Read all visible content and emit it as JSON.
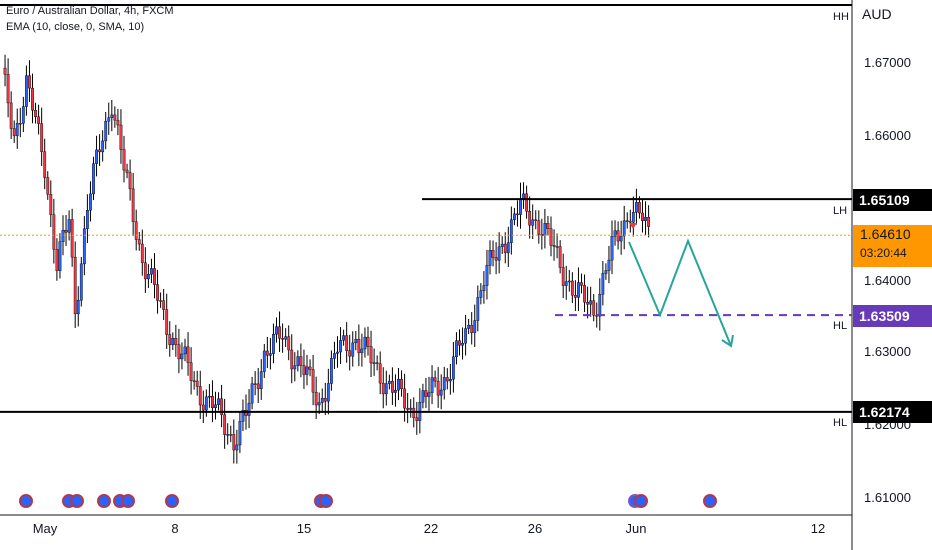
{
  "header": {
    "title": "Euro / Australian Dollar, 4h, FXCM",
    "indicator": "EMA (10, close, 0, SMA, 10)"
  },
  "axis": {
    "currency": "AUD",
    "y_ticks": [
      "1.67000",
      "1.66000",
      "1.64000",
      "1.63000",
      "1.62000",
      "1.61000"
    ],
    "x_ticks": [
      "May",
      "8",
      "15",
      "22",
      "26",
      "Jun",
      "12"
    ]
  },
  "levels": {
    "hh": "HH",
    "lh": "LH",
    "hl1": "HL",
    "hl2": "HL"
  },
  "price_tags": {
    "resistance": "1.65109",
    "current": "1.64610",
    "countdown": "03:20:44",
    "mid_support": "1.63509",
    "support": "1.62174"
  },
  "colors": {
    "up_candle": "#2962ff",
    "down_candle": "#f23645",
    "level_line": "#000000",
    "dashed_support": "#673ab7",
    "projection": "#26a69a",
    "current_price": "#ff9800",
    "mid_support_tag": "#673ab7"
  },
  "chart_data": {
    "type": "candlestick",
    "symbol": "EURAUD",
    "timeframe": "4h",
    "ylim": [
      1.605,
      1.677
    ],
    "levels": [
      1.65109,
      1.63509,
      1.62174
    ],
    "current_price": 1.6461,
    "close_path": [
      [
        0,
        1.668
      ],
      [
        4,
        1.66
      ],
      [
        8,
        1.667
      ],
      [
        14,
        1.656
      ],
      [
        18,
        1.642
      ],
      [
        22,
        1.648
      ],
      [
        24,
        1.636
      ],
      [
        28,
        1.65
      ],
      [
        32,
        1.658
      ],
      [
        36,
        1.665
      ],
      [
        40,
        1.655
      ],
      [
        46,
        1.643
      ],
      [
        52,
        1.636
      ],
      [
        58,
        1.63
      ],
      [
        64,
        1.625
      ],
      [
        70,
        1.622
      ],
      [
        76,
        1.618
      ],
      [
        80,
        1.621
      ],
      [
        86,
        1.63
      ],
      [
        92,
        1.632
      ],
      [
        98,
        1.628
      ],
      [
        104,
        1.623
      ],
      [
        110,
        1.63
      ],
      [
        116,
        1.632
      ],
      [
        122,
        1.628
      ],
      [
        128,
        1.625
      ],
      [
        134,
        1.622
      ],
      [
        140,
        1.624
      ],
      [
        146,
        1.627
      ],
      [
        152,
        1.632
      ],
      [
        158,
        1.64
      ],
      [
        164,
        1.645
      ],
      [
        170,
        1.65
      ],
      [
        176,
        1.648
      ],
      [
        182,
        1.643
      ],
      [
        188,
        1.638
      ],
      [
        194,
        1.636
      ],
      [
        200,
        1.644
      ],
      [
        206,
        1.65
      ],
      [
        210,
        1.648
      ],
      [
        212,
        1.6461
      ]
    ]
  }
}
